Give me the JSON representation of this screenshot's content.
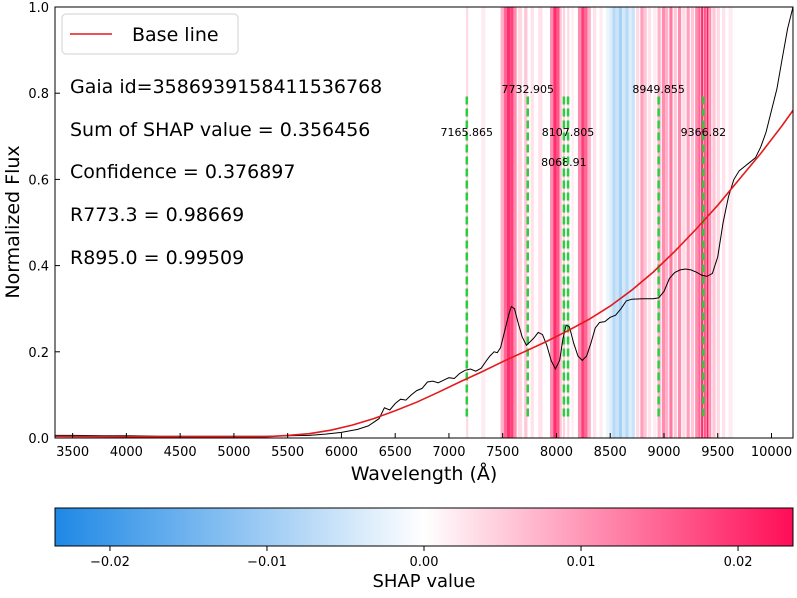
{
  "chart_data": {
    "type": "line",
    "xlabel": "Wavelength (Å)",
    "ylabel": "Normalized Flux",
    "xlim": [
      3336,
      10200
    ],
    "ylim": [
      0.0,
      1.0
    ],
    "x_ticks": [
      3500,
      4000,
      4500,
      5000,
      5500,
      6000,
      6500,
      7000,
      7500,
      8000,
      8500,
      9000,
      9500,
      10000
    ],
    "y_ticks": [
      0.0,
      0.2,
      0.4,
      0.6,
      0.8,
      1.0
    ],
    "legend": {
      "position": "top-left",
      "entries": [
        {
          "label": "Base line",
          "color": "#e31a1c"
        }
      ]
    },
    "annotations": [
      {
        "id": "gaia",
        "text": "Gaia id=3586939158411536768"
      },
      {
        "id": "shap-sum",
        "text": "Sum of SHAP value = 0.356456"
      },
      {
        "id": "confidence",
        "text": "Confidence = 0.376897"
      },
      {
        "id": "r773",
        "text": "R773.3 = 0.98669"
      },
      {
        "id": "r895",
        "text": "R895.0 = 0.99509"
      }
    ],
    "marked_lines": [
      {
        "label": "7165.865",
        "x": 7165.865,
        "label_y": 0.71
      },
      {
        "label": "7732.905",
        "x": 7732.905,
        "label_y": 0.81
      },
      {
        "label": "8068.91",
        "x": 8068.91,
        "label_y": 0.64
      },
      {
        "label": "8107.805",
        "x": 8107.805,
        "label_y": 0.71
      },
      {
        "label": "8949.855",
        "x": 8949.855,
        "label_y": 0.81
      },
      {
        "label": "9366.82",
        "x": 9366.82,
        "label_y": 0.71
      }
    ],
    "marked_line_range": [
      0.05,
      0.8
    ],
    "marked_line_color": "#2ecc40",
    "series": [
      {
        "name": "Spectrum",
        "color": "#000000",
        "points": [
          [
            3336,
            0.006
          ],
          [
            3500,
            0.006
          ],
          [
            3800,
            0.005
          ],
          [
            4000,
            0.005
          ],
          [
            4300,
            0.004
          ],
          [
            4600,
            0.004
          ],
          [
            5000,
            0.004
          ],
          [
            5300,
            0.004
          ],
          [
            5500,
            0.005
          ],
          [
            5700,
            0.006
          ],
          [
            5850,
            0.009
          ],
          [
            6000,
            0.013
          ],
          [
            6150,
            0.02
          ],
          [
            6250,
            0.028
          ],
          [
            6350,
            0.045
          ],
          [
            6400,
            0.07
          ],
          [
            6450,
            0.065
          ],
          [
            6500,
            0.08
          ],
          [
            6550,
            0.09
          ],
          [
            6600,
            0.088
          ],
          [
            6650,
            0.1
          ],
          [
            6700,
            0.11
          ],
          [
            6750,
            0.115
          ],
          [
            6800,
            0.13
          ],
          [
            6850,
            0.132
          ],
          [
            6900,
            0.128
          ],
          [
            6950,
            0.134
          ],
          [
            7000,
            0.14
          ],
          [
            7050,
            0.138
          ],
          [
            7100,
            0.15
          ],
          [
            7150,
            0.157
          ],
          [
            7200,
            0.16
          ],
          [
            7250,
            0.155
          ],
          [
            7300,
            0.162
          ],
          [
            7350,
            0.18
          ],
          [
            7380,
            0.19
          ],
          [
            7420,
            0.2
          ],
          [
            7450,
            0.198
          ],
          [
            7480,
            0.21
          ],
          [
            7510,
            0.24
          ],
          [
            7540,
            0.27
          ],
          [
            7560,
            0.29
          ],
          [
            7580,
            0.305
          ],
          [
            7610,
            0.3
          ],
          [
            7640,
            0.27
          ],
          [
            7680,
            0.235
          ],
          [
            7720,
            0.215
          ],
          [
            7750,
            0.222
          ],
          [
            7790,
            0.232
          ],
          [
            7830,
            0.245
          ],
          [
            7870,
            0.24
          ],
          [
            7910,
            0.215
          ],
          [
            7950,
            0.18
          ],
          [
            7990,
            0.16
          ],
          [
            8030,
            0.18
          ],
          [
            8060,
            0.23
          ],
          [
            8090,
            0.262
          ],
          [
            8120,
            0.258
          ],
          [
            8160,
            0.22
          ],
          [
            8200,
            0.19
          ],
          [
            8240,
            0.18
          ],
          [
            8280,
            0.19
          ],
          [
            8320,
            0.22
          ],
          [
            8360,
            0.255
          ],
          [
            8400,
            0.268
          ],
          [
            8450,
            0.27
          ],
          [
            8500,
            0.28
          ],
          [
            8550,
            0.285
          ],
          [
            8600,
            0.3
          ],
          [
            8650,
            0.318
          ],
          [
            8700,
            0.322
          ],
          [
            8800,
            0.323
          ],
          [
            8900,
            0.323
          ],
          [
            8950,
            0.325
          ],
          [
            9000,
            0.34
          ],
          [
            9050,
            0.37
          ],
          [
            9100,
            0.384
          ],
          [
            9150,
            0.39
          ],
          [
            9200,
            0.392
          ],
          [
            9250,
            0.39
          ],
          [
            9300,
            0.385
          ],
          [
            9350,
            0.378
          ],
          [
            9400,
            0.375
          ],
          [
            9450,
            0.382
          ],
          [
            9500,
            0.42
          ],
          [
            9550,
            0.5
          ],
          [
            9600,
            0.56
          ],
          [
            9650,
            0.6
          ],
          [
            9700,
            0.62
          ],
          [
            9750,
            0.63
          ],
          [
            9800,
            0.64
          ],
          [
            9850,
            0.65
          ],
          [
            9900,
            0.675
          ],
          [
            9950,
            0.71
          ],
          [
            10000,
            0.76
          ],
          [
            10050,
            0.81
          ],
          [
            10100,
            0.88
          ],
          [
            10150,
            0.95
          ],
          [
            10200,
            1.0
          ]
        ]
      },
      {
        "name": "Base line",
        "color": "#e31a1c",
        "points": [
          [
            3336,
            0.004
          ],
          [
            4000,
            0.003
          ],
          [
            4500,
            0.003
          ],
          [
            5000,
            0.003
          ],
          [
            5300,
            0.003
          ],
          [
            5500,
            0.006
          ],
          [
            5700,
            0.01
          ],
          [
            5900,
            0.018
          ],
          [
            6100,
            0.03
          ],
          [
            6300,
            0.045
          ],
          [
            6500,
            0.063
          ],
          [
            6700,
            0.083
          ],
          [
            6900,
            0.106
          ],
          [
            7100,
            0.13
          ],
          [
            7300,
            0.153
          ],
          [
            7500,
            0.177
          ],
          [
            7700,
            0.2
          ],
          [
            7900,
            0.223
          ],
          [
            8100,
            0.248
          ],
          [
            8300,
            0.275
          ],
          [
            8500,
            0.306
          ],
          [
            8700,
            0.343
          ],
          [
            8900,
            0.385
          ],
          [
            9100,
            0.433
          ],
          [
            9300,
            0.485
          ],
          [
            9500,
            0.54
          ],
          [
            9700,
            0.6
          ],
          [
            9900,
            0.66
          ],
          [
            10100,
            0.725
          ],
          [
            10200,
            0.76
          ]
        ]
      }
    ],
    "shap_bands": [
      {
        "x": 7160,
        "w": 20,
        "v": 0.004
      },
      {
        "x": 7300,
        "w": 40,
        "v": 0.002
      },
      {
        "x": 7480,
        "w": 30,
        "v": 0.008
      },
      {
        "x": 7510,
        "w": 30,
        "v": 0.016
      },
      {
        "x": 7540,
        "w": 30,
        "v": 0.022
      },
      {
        "x": 7570,
        "w": 30,
        "v": 0.02
      },
      {
        "x": 7600,
        "w": 30,
        "v": 0.012
      },
      {
        "x": 7640,
        "w": 40,
        "v": 0.004
      },
      {
        "x": 7700,
        "w": 30,
        "v": 0.006
      },
      {
        "x": 7760,
        "w": 30,
        "v": 0.003
      },
      {
        "x": 7830,
        "w": 40,
        "v": 0.003
      },
      {
        "x": 7940,
        "w": 30,
        "v": 0.012
      },
      {
        "x": 7970,
        "w": 30,
        "v": 0.022
      },
      {
        "x": 8000,
        "w": 30,
        "v": 0.018
      },
      {
        "x": 8030,
        "w": 20,
        "v": 0.006
      },
      {
        "x": 8060,
        "w": 20,
        "v": 0.005
      },
      {
        "x": 8100,
        "w": 20,
        "v": 0.004
      },
      {
        "x": 8140,
        "w": 20,
        "v": 0.002
      },
      {
        "x": 8200,
        "w": 30,
        "v": 0.012
      },
      {
        "x": 8230,
        "w": 30,
        "v": 0.02
      },
      {
        "x": 8260,
        "w": 30,
        "v": 0.016
      },
      {
        "x": 8290,
        "w": 30,
        "v": 0.008
      },
      {
        "x": 8340,
        "w": 30,
        "v": 0.003
      },
      {
        "x": 8400,
        "w": 30,
        "v": 0.002
      },
      {
        "x": 8460,
        "w": 30,
        "v": -0.002
      },
      {
        "x": 8490,
        "w": 30,
        "v": -0.004
      },
      {
        "x": 8520,
        "w": 30,
        "v": -0.008
      },
      {
        "x": 8550,
        "w": 30,
        "v": -0.006
      },
      {
        "x": 8580,
        "w": 30,
        "v": -0.01
      },
      {
        "x": 8610,
        "w": 30,
        "v": -0.005
      },
      {
        "x": 8640,
        "w": 30,
        "v": -0.008
      },
      {
        "x": 8670,
        "w": 30,
        "v": -0.004
      },
      {
        "x": 8700,
        "w": 30,
        "v": -0.006
      },
      {
        "x": 8740,
        "w": 30,
        "v": 0.004
      },
      {
        "x": 8780,
        "w": 30,
        "v": 0.01
      },
      {
        "x": 8810,
        "w": 30,
        "v": 0.006
      },
      {
        "x": 8850,
        "w": 30,
        "v": 0.003
      },
      {
        "x": 8900,
        "w": 30,
        "v": 0.002
      },
      {
        "x": 8940,
        "w": 30,
        "v": 0.008
      },
      {
        "x": 8980,
        "w": 30,
        "v": 0.012
      },
      {
        "x": 9010,
        "w": 30,
        "v": 0.008
      },
      {
        "x": 9050,
        "w": 30,
        "v": 0.014
      },
      {
        "x": 9090,
        "w": 30,
        "v": 0.006
      },
      {
        "x": 9130,
        "w": 30,
        "v": 0.012
      },
      {
        "x": 9170,
        "w": 30,
        "v": 0.004
      },
      {
        "x": 9210,
        "w": 30,
        "v": 0.01
      },
      {
        "x": 9250,
        "w": 30,
        "v": 0.006
      },
      {
        "x": 9290,
        "w": 30,
        "v": 0.012
      },
      {
        "x": 9320,
        "w": 20,
        "v": 0.016
      },
      {
        "x": 9345,
        "w": 20,
        "v": 0.022
      },
      {
        "x": 9370,
        "w": 20,
        "v": 0.018
      },
      {
        "x": 9395,
        "w": 20,
        "v": 0.024
      },
      {
        "x": 9420,
        "w": 20,
        "v": 0.012
      },
      {
        "x": 9450,
        "w": 30,
        "v": 0.006
      },
      {
        "x": 9490,
        "w": 30,
        "v": 0.004
      },
      {
        "x": 9540,
        "w": 30,
        "v": 0.003
      },
      {
        "x": 9600,
        "w": 40,
        "v": 0.002
      }
    ],
    "colorbar": {
      "label": "SHAP value",
      "range": [
        -0.0235,
        0.0235
      ],
      "ticks": [
        -0.02,
        -0.01,
        0.0,
        0.01,
        0.02
      ],
      "tick_labels": [
        "−0.02",
        "−0.01",
        "0.00",
        "0.01",
        "0.02"
      ],
      "colors": {
        "negative": "#1e88e5",
        "neutral": "#ffffff",
        "positive": "#ff0d57"
      }
    }
  }
}
